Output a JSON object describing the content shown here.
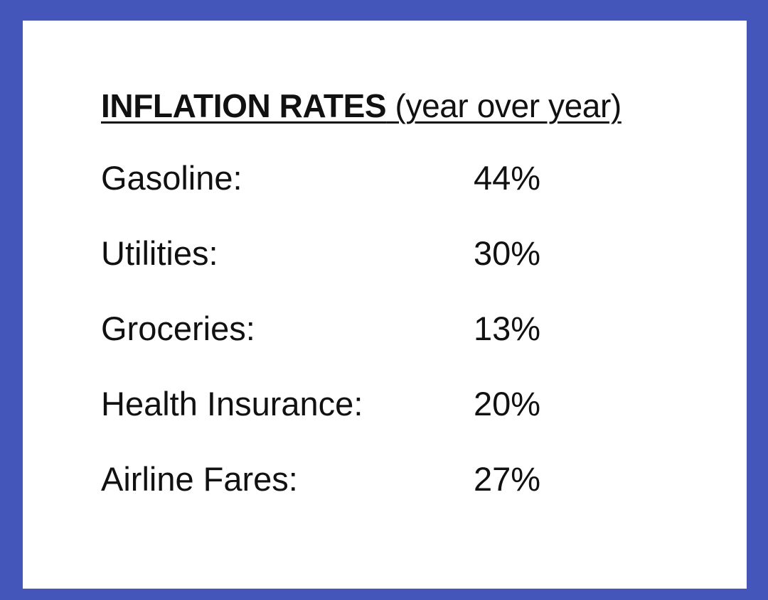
{
  "document": {
    "title": {
      "bold": "INFLATION RATES",
      "suffix": "(year over year)"
    },
    "rates": [
      {
        "label": "Gasoline:",
        "value": "44%"
      },
      {
        "label": "Utilities:",
        "value": "30%"
      },
      {
        "label": "Groceries:",
        "value": "13%"
      },
      {
        "label": "Health Insurance:",
        "value": "20%"
      },
      {
        "label": "Airline Fares:",
        "value": "27%"
      }
    ]
  },
  "colors": {
    "border": "#4456b9",
    "background": "#ffffff",
    "text": "#111111"
  }
}
